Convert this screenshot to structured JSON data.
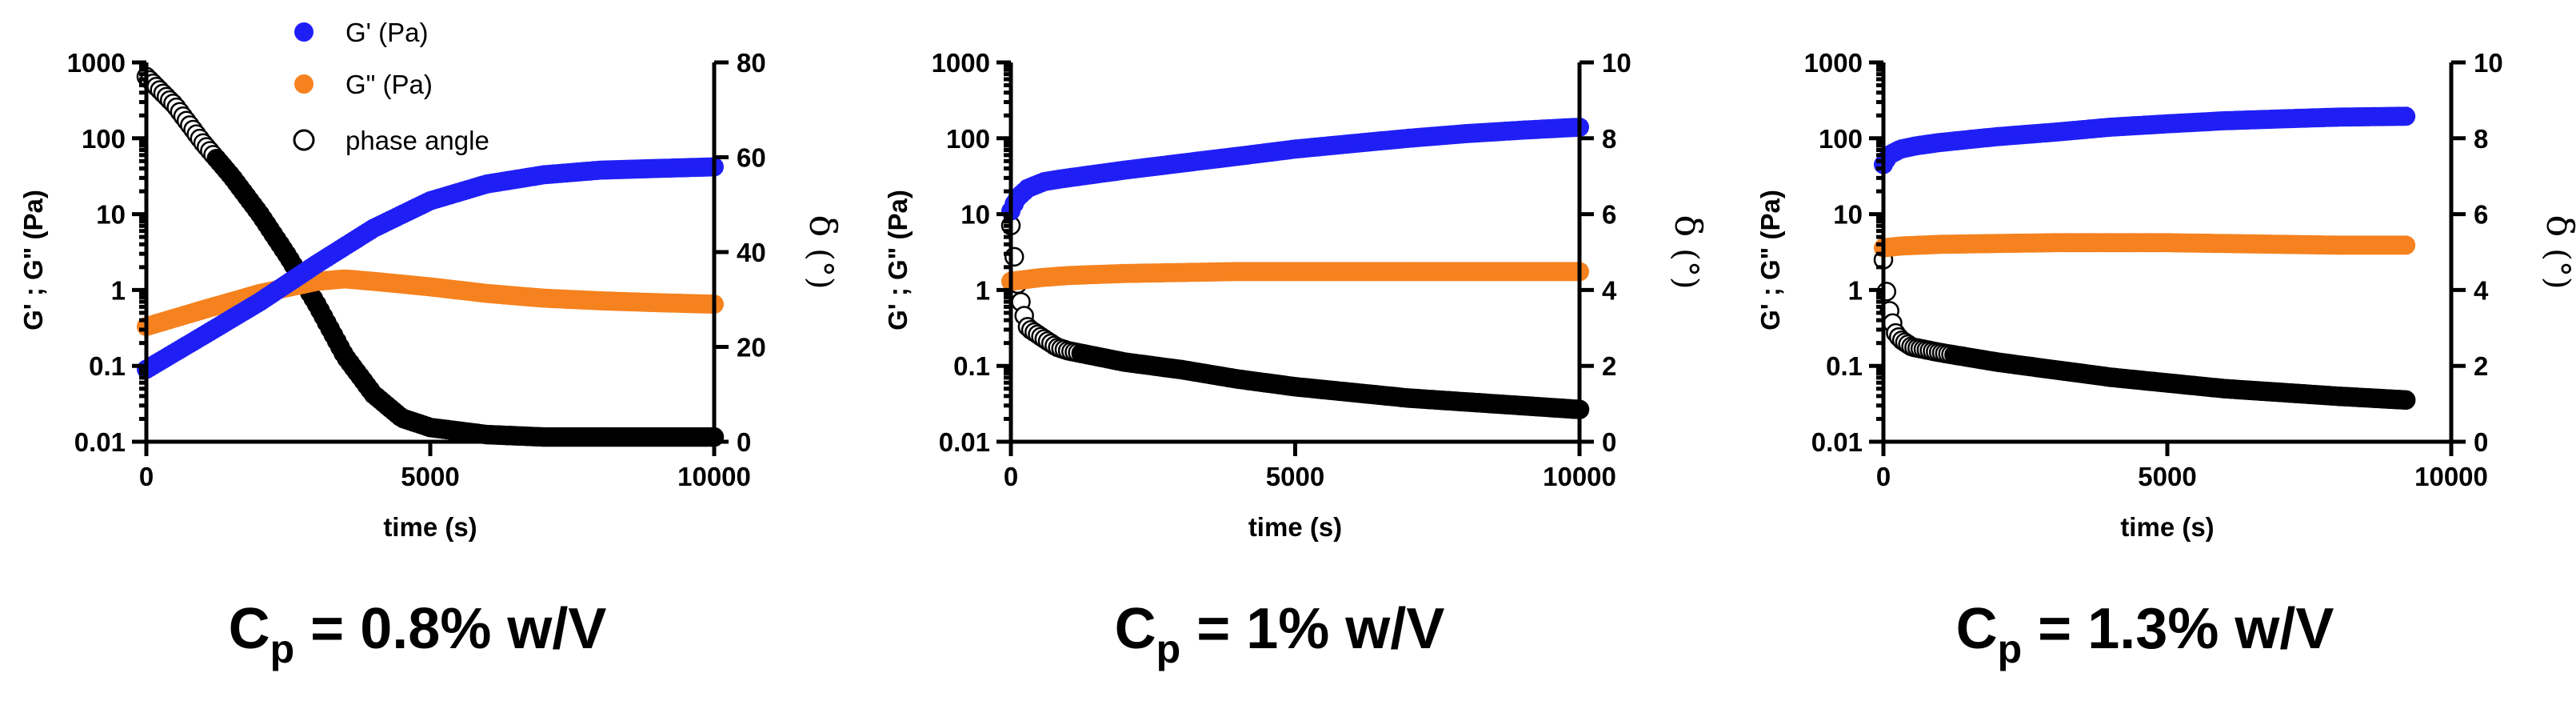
{
  "colors": {
    "g_prime": "#1f1ff5",
    "g_double_prime": "#f5821f",
    "phase": "#000000"
  },
  "legend": {
    "g_prime": "G' (Pa)",
    "g_double_prime": "G\" (Pa)",
    "phase": "phase angle"
  },
  "chart_data": [
    {
      "type": "scatter",
      "caption_main": "C",
      "caption_sub": "p",
      "caption_rest": " = 0.8% w/V",
      "xlabel": "time (s)",
      "ylabel": "G' ; G\" (Pa)",
      "y2label_symbol": "δ",
      "y2label_unit": "(°)",
      "xlim": [
        0,
        10000
      ],
      "ylim_log": [
        0.01,
        1000
      ],
      "y2lim": [
        0,
        80
      ],
      "x_ticks": [
        "0",
        "5000",
        "10000"
      ],
      "y_ticks": [
        "0.01",
        "0.1",
        "1",
        "10",
        "100",
        "1000"
      ],
      "y2_ticks": [
        "0",
        "20",
        "40",
        "60",
        "80"
      ],
      "series": [
        {
          "name": "G' (Pa)",
          "axis": "left",
          "x": [
            0,
            1000,
            2000,
            3000,
            4000,
            5000,
            6000,
            7000,
            8000,
            9000,
            10000
          ],
          "y": [
            0.09,
            0.25,
            0.7,
            2.2,
            6.5,
            15,
            25,
            33,
            38,
            40,
            42
          ]
        },
        {
          "name": "G\" (Pa)",
          "axis": "left",
          "x": [
            0,
            1000,
            2000,
            3000,
            3500,
            4000,
            5000,
            6000,
            7000,
            8000,
            9000,
            10000
          ],
          "y": [
            0.33,
            0.55,
            0.9,
            1.3,
            1.4,
            1.3,
            1.1,
            0.9,
            0.78,
            0.72,
            0.68,
            0.65
          ]
        },
        {
          "name": "phase angle",
          "axis": "right",
          "x": [
            0,
            500,
            1000,
            1500,
            2000,
            2500,
            3000,
            3500,
            4000,
            4500,
            5000,
            6000,
            7000,
            8000,
            10000
          ],
          "y": [
            77,
            71,
            63,
            56,
            48,
            39,
            29,
            18,
            10,
            5,
            3,
            1.5,
            1,
            1,
            1
          ]
        }
      ]
    },
    {
      "type": "scatter",
      "caption_main": "C",
      "caption_sub": "p",
      "caption_rest": " = 1% w/V",
      "xlabel": "time (s)",
      "ylabel": "G' ; G\" (Pa)",
      "y2label_symbol": "δ",
      "y2label_unit": "(°)",
      "xlim": [
        0,
        10000
      ],
      "ylim_log": [
        0.01,
        1000
      ],
      "y2lim": [
        0,
        10
      ],
      "x_ticks": [
        "0",
        "5000",
        "10000"
      ],
      "y_ticks": [
        "0.01",
        "0.1",
        "1",
        "10",
        "100",
        "1000"
      ],
      "y2_ticks": [
        "0",
        "2",
        "4",
        "6",
        "8",
        "10"
      ],
      "series": [
        {
          "name": "G' (Pa)",
          "axis": "left",
          "x": [
            0,
            100,
            300,
            600,
            1000,
            2000,
            3000,
            4000,
            5000,
            6000,
            7000,
            8000,
            9000,
            10000
          ],
          "y": [
            11,
            16,
            22,
            27,
            30,
            38,
            47,
            58,
            72,
            85,
            100,
            115,
            128,
            140
          ]
        },
        {
          "name": "G\" (Pa)",
          "axis": "left",
          "x": [
            0,
            500,
            1000,
            2000,
            3000,
            4000,
            5000,
            6000,
            7000,
            8000,
            9000,
            10000
          ],
          "y": [
            1.3,
            1.45,
            1.55,
            1.65,
            1.7,
            1.75,
            1.75,
            1.75,
            1.75,
            1.75,
            1.75,
            1.75
          ]
        },
        {
          "name": "phase angle",
          "axis": "right",
          "x": [
            0,
            50,
            100,
            200,
            300,
            500,
            800,
            1000,
            2000,
            3000,
            4000,
            5000,
            6000,
            7000,
            8000,
            9000,
            10000
          ],
          "y": [
            5.7,
            5.0,
            4.3,
            3.5,
            3.0,
            2.8,
            2.5,
            2.4,
            2.1,
            1.9,
            1.65,
            1.45,
            1.3,
            1.15,
            1.05,
            0.95,
            0.85
          ]
        }
      ]
    },
    {
      "type": "scatter",
      "caption_main": "C",
      "caption_sub": "p",
      "caption_rest": " = 1.3% w/V",
      "xlabel": "time (s)",
      "ylabel": "G' ; G\" (Pa)",
      "y2label_symbol": "δ",
      "y2label_unit": "(°)",
      "xlim": [
        0,
        10000
      ],
      "ylim_log": [
        0.01,
        1000
      ],
      "y2lim": [
        0,
        10
      ],
      "x_ticks": [
        "0",
        "5000",
        "10000"
      ],
      "y_ticks": [
        "0.01",
        "0.1",
        "1",
        "10",
        "100",
        "1000"
      ],
      "y2_ticks": [
        "0",
        "2",
        "4",
        "6",
        "8",
        "10"
      ],
      "series": [
        {
          "name": "G' (Pa)",
          "axis": "left",
          "x": [
            0,
            100,
            300,
            600,
            1000,
            2000,
            3000,
            4000,
            5000,
            6000,
            7000,
            8000,
            9200
          ],
          "y": [
            45,
            60,
            72,
            80,
            88,
            105,
            120,
            140,
            155,
            170,
            180,
            190,
            195
          ]
        },
        {
          "name": "G\" (Pa)",
          "axis": "left",
          "x": [
            0,
            300,
            1000,
            2000,
            3000,
            4000,
            5000,
            6000,
            7000,
            8000,
            9200
          ],
          "y": [
            3.6,
            3.8,
            4.0,
            4.1,
            4.2,
            4.2,
            4.2,
            4.1,
            4.0,
            3.9,
            3.9
          ]
        },
        {
          "name": "phase angle",
          "axis": "right",
          "x": [
            0,
            50,
            100,
            200,
            300,
            500,
            1000,
            2000,
            3000,
            4000,
            5000,
            6000,
            7000,
            8000,
            9200
          ],
          "y": [
            4.8,
            4.0,
            3.5,
            2.9,
            2.7,
            2.5,
            2.35,
            2.1,
            1.9,
            1.7,
            1.55,
            1.4,
            1.3,
            1.2,
            1.1
          ]
        }
      ]
    }
  ]
}
